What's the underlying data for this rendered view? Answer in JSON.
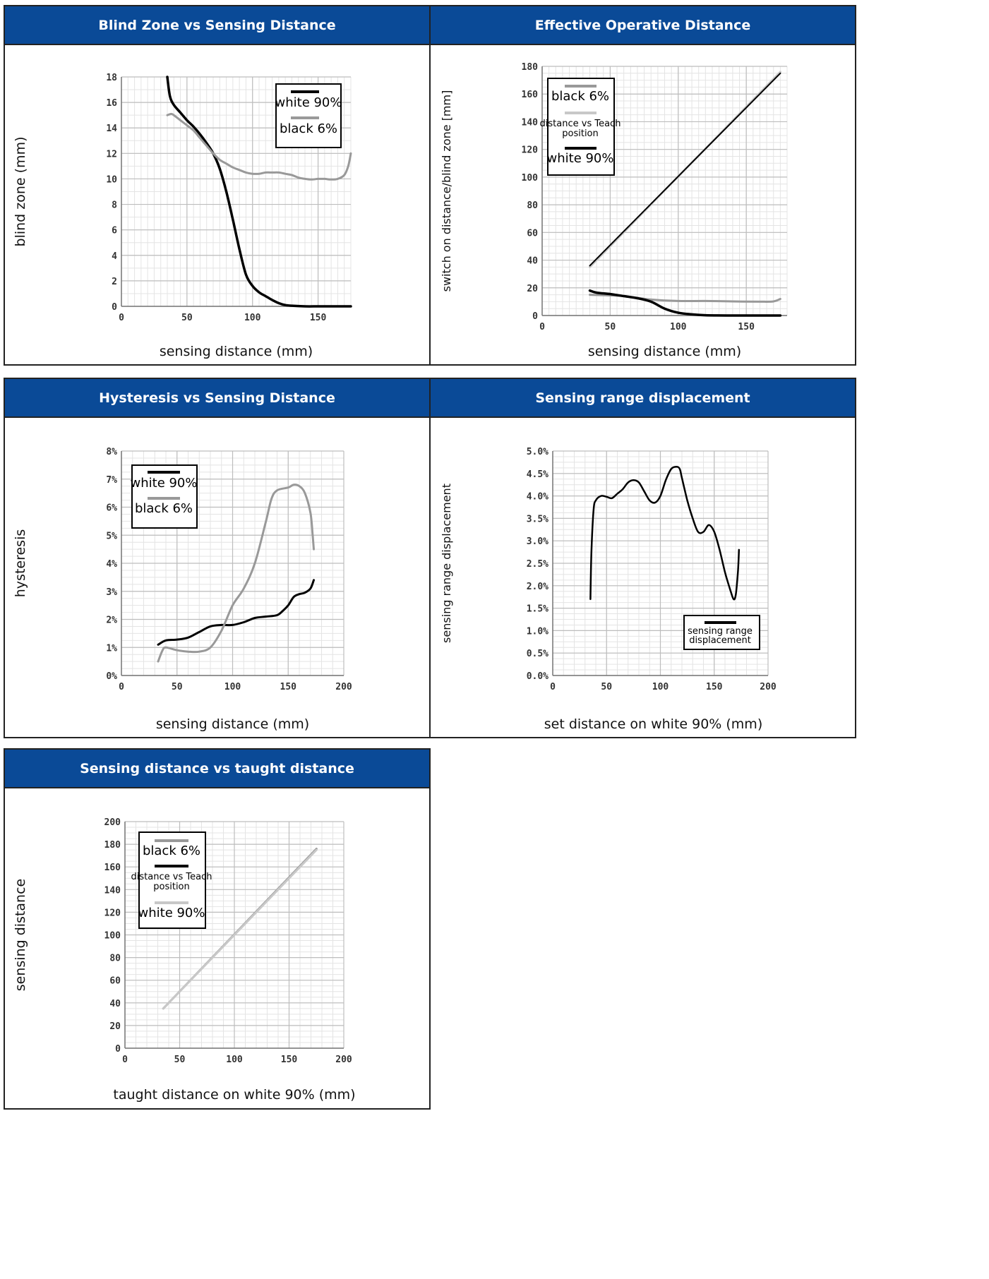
{
  "colors": {
    "header_bg": "#0a4a97",
    "white_series": "#000000",
    "black_series": "#999999",
    "teach_series": "#c8c8c8"
  },
  "chart_data": [
    {
      "type": "line",
      "title": "Blind Zone vs Sensing Distance",
      "xlabel": "sensing distance (mm)",
      "ylabel": "blind zone (mm)",
      "xlim": [
        0,
        175
      ],
      "ylim": [
        0,
        18
      ],
      "xticks": [
        0,
        50,
        100,
        150
      ],
      "yticks": [
        0,
        2,
        4,
        6,
        8,
        10,
        12,
        14,
        16,
        18
      ],
      "legend_position": "top-right",
      "series": [
        {
          "name": "white 90%",
          "x": [
            35,
            37,
            40,
            45,
            50,
            55,
            60,
            65,
            70,
            75,
            80,
            85,
            90,
            95,
            100,
            105,
            110,
            115,
            120,
            125,
            130,
            140,
            150,
            160,
            175
          ],
          "y": [
            18,
            16.5,
            15.8,
            15.2,
            14.6,
            14.1,
            13.5,
            12.8,
            12.0,
            10.8,
            9.0,
            6.8,
            4.5,
            2.5,
            1.6,
            1.1,
            0.8,
            0.5,
            0.25,
            0.1,
            0.05,
            0,
            0,
            0,
            0
          ]
        },
        {
          "name": "black 6%",
          "x": [
            35,
            38,
            40,
            45,
            50,
            55,
            60,
            65,
            70,
            75,
            80,
            85,
            90,
            95,
            100,
            105,
            110,
            115,
            120,
            125,
            130,
            135,
            140,
            145,
            150,
            155,
            160,
            165,
            170,
            173,
            175
          ],
          "y": [
            15,
            15.1,
            15.0,
            14.6,
            14.2,
            13.8,
            13.2,
            12.6,
            12.0,
            11.5,
            11.2,
            10.9,
            10.7,
            10.5,
            10.4,
            10.4,
            10.5,
            10.5,
            10.5,
            10.4,
            10.3,
            10.1,
            10.0,
            9.95,
            10.0,
            10.0,
            9.95,
            10.0,
            10.3,
            11.0,
            12.0
          ]
        }
      ]
    },
    {
      "type": "line",
      "title": "Effective Operative Distance",
      "xlabel": "sensing distance (mm)",
      "ylabel": "switch on distance/blind zone [mm]",
      "xlim": [
        0,
        180
      ],
      "ylim": [
        0,
        180
      ],
      "xticks": [
        0,
        50,
        100,
        150
      ],
      "yticks": [
        0,
        20,
        40,
        60,
        80,
        100,
        120,
        140,
        160,
        180
      ],
      "legend_position": "top-left",
      "series": [
        {
          "name": "black 6%",
          "x": [
            35,
            60,
            80,
            100,
            120,
            140,
            160,
            170,
            175
          ],
          "y": [
            15,
            14,
            11.5,
            10.5,
            10.5,
            10.2,
            10,
            10.2,
            12
          ]
        },
        {
          "name": "distance vs Teach position",
          "x": [
            35,
            175
          ],
          "y": [
            35,
            176
          ]
        },
        {
          "name": "white 90%",
          "x": [
            35,
            40,
            50,
            60,
            70,
            80,
            90,
            100,
            110,
            120,
            140,
            175
          ],
          "y": [
            18,
            16.5,
            15.5,
            14,
            12.5,
            10,
            5,
            2,
            0.8,
            0.2,
            0,
            0
          ]
        },
        {
          "name": "",
          "x": [
            35,
            175
          ],
          "y": [
            36,
            175
          ]
        }
      ]
    },
    {
      "type": "line",
      "title": "Hysteresis vs Sensing Distance",
      "xlabel": "sensing distance (mm)",
      "ylabel": "hysteresis",
      "xlim": [
        0,
        200
      ],
      "ylim": [
        0,
        8
      ],
      "xticks": [
        0,
        50,
        100,
        150,
        200
      ],
      "yticks": [
        "0%",
        "1%",
        "2%",
        "3%",
        "4%",
        "5%",
        "6%",
        "7%",
        "8%"
      ],
      "legend_position": "top-left",
      "series": [
        {
          "name": "white 90%",
          "x": [
            33,
            40,
            50,
            60,
            70,
            80,
            90,
            100,
            110,
            120,
            130,
            140,
            145,
            150,
            155,
            160,
            165,
            170,
            173
          ],
          "y": [
            1.1,
            1.25,
            1.28,
            1.35,
            1.55,
            1.75,
            1.8,
            1.8,
            1.9,
            2.05,
            2.1,
            2.15,
            2.3,
            2.5,
            2.8,
            2.9,
            2.95,
            3.1,
            3.4
          ]
        },
        {
          "name": "black 6%",
          "x": [
            33,
            37,
            40,
            50,
            60,
            70,
            80,
            90,
            100,
            110,
            120,
            130,
            135,
            140,
            150,
            155,
            160,
            165,
            170,
            172,
            173
          ],
          "y": [
            0.5,
            0.9,
            1.0,
            0.9,
            0.85,
            0.85,
            1.0,
            1.6,
            2.5,
            3.1,
            4.0,
            5.5,
            6.3,
            6.6,
            6.7,
            6.8,
            6.75,
            6.5,
            5.8,
            5.0,
            4.5
          ]
        }
      ]
    },
    {
      "type": "line",
      "title": "Sensing range displacement",
      "xlabel": "set distance on white 90% (mm)",
      "ylabel": "sensing range displacement",
      "xlim": [
        0,
        200
      ],
      "ylim": [
        0,
        5
      ],
      "xticks": [
        0,
        50,
        100,
        150,
        200
      ],
      "yticks": [
        "0.0%",
        "0.5%",
        "1.0%",
        "1.5%",
        "2.0%",
        "2.5%",
        "3.0%",
        "3.5%",
        "4.0%",
        "4.5%",
        "5.0%"
      ],
      "legend_position": "bottom-right",
      "series": [
        {
          "name": "sensing range displacement",
          "x": [
            35,
            36,
            38,
            40,
            45,
            50,
            55,
            60,
            65,
            70,
            75,
            80,
            85,
            90,
            95,
            100,
            105,
            110,
            115,
            118,
            120,
            125,
            130,
            135,
            140,
            145,
            150,
            155,
            160,
            165,
            168,
            170,
            172,
            173
          ],
          "y": [
            1.7,
            2.8,
            3.7,
            3.9,
            4.0,
            3.98,
            3.95,
            4.05,
            4.15,
            4.3,
            4.35,
            4.3,
            4.1,
            3.9,
            3.85,
            4.0,
            4.35,
            4.6,
            4.65,
            4.6,
            4.4,
            3.9,
            3.5,
            3.2,
            3.2,
            3.35,
            3.2,
            2.8,
            2.3,
            1.9,
            1.7,
            1.8,
            2.3,
            2.8
          ]
        }
      ]
    },
    {
      "type": "line",
      "title": "Sensing distance vs taught distance",
      "xlabel": "taught distance on white 90% (mm)",
      "ylabel": "sensing distance",
      "xlim": [
        0,
        200
      ],
      "ylim": [
        0,
        200
      ],
      "xticks": [
        0,
        50,
        100,
        150,
        200
      ],
      "yticks": [
        0,
        20,
        40,
        60,
        80,
        100,
        120,
        140,
        160,
        180,
        200
      ],
      "legend_position": "top-left",
      "series": [
        {
          "name": "black 6%",
          "x": [
            35,
            175
          ],
          "y": [
            35,
            176
          ]
        },
        {
          "name": "distance vs Teach position",
          "x": [
            35,
            175
          ],
          "y": [
            35,
            175
          ]
        },
        {
          "name": "white 90%",
          "x": [
            35,
            175
          ],
          "y": [
            35,
            175
          ]
        }
      ]
    }
  ]
}
